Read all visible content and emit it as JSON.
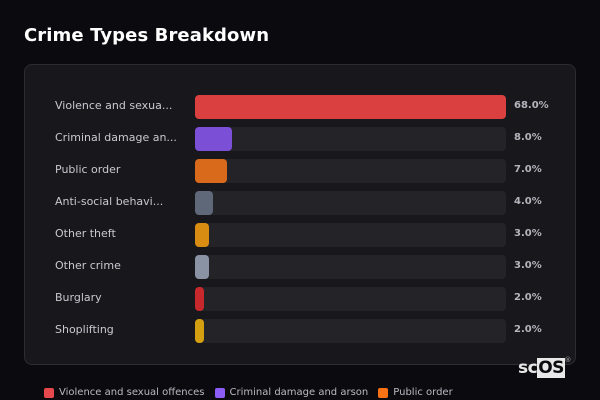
{
  "header": {
    "title": "Crime Types Breakdown"
  },
  "chart_data": {
    "type": "bar",
    "orientation": "horizontal",
    "title": "Crime Types Breakdown",
    "categories": [
      "Violence and sexual offences",
      "Criminal damage and arson",
      "Public order",
      "Anti-social behaviour",
      "Other theft",
      "Other crime",
      "Burglary",
      "Shoplifting"
    ],
    "display_labels": [
      "Violence and sexua...",
      "Criminal damage an...",
      "Public order",
      "Anti-social behavi...",
      "Other theft",
      "Other crime",
      "Burglary",
      "Shoplifting"
    ],
    "values": [
      68.0,
      8.0,
      7.0,
      4.0,
      3.0,
      3.0,
      2.0,
      2.0
    ],
    "value_labels": [
      "68.0%",
      "8.0%",
      "7.0%",
      "4.0%",
      "3.0%",
      "3.0%",
      "2.0%",
      "2.0%"
    ],
    "colors": [
      "#d9403f",
      "#7b4fd6",
      "#d96a1c",
      "#5f6878",
      "#d98c12",
      "#8a93a3",
      "#c7282b",
      "#d4a012"
    ],
    "max_value": 68.0,
    "unit": "%",
    "xlabel": "",
    "ylabel": "",
    "grid": false,
    "legend": {
      "position": "bottom",
      "entries": [
        {
          "label": "Violence and sexual offences",
          "color": "#e5484d"
        },
        {
          "label": "Criminal damage and arson",
          "color": "#8b5cf6"
        },
        {
          "label": "Public order",
          "color": "#f97316"
        }
      ]
    }
  },
  "branding": {
    "logo_sc": "sc",
    "logo_os": "OS",
    "logo_reg": "®"
  }
}
